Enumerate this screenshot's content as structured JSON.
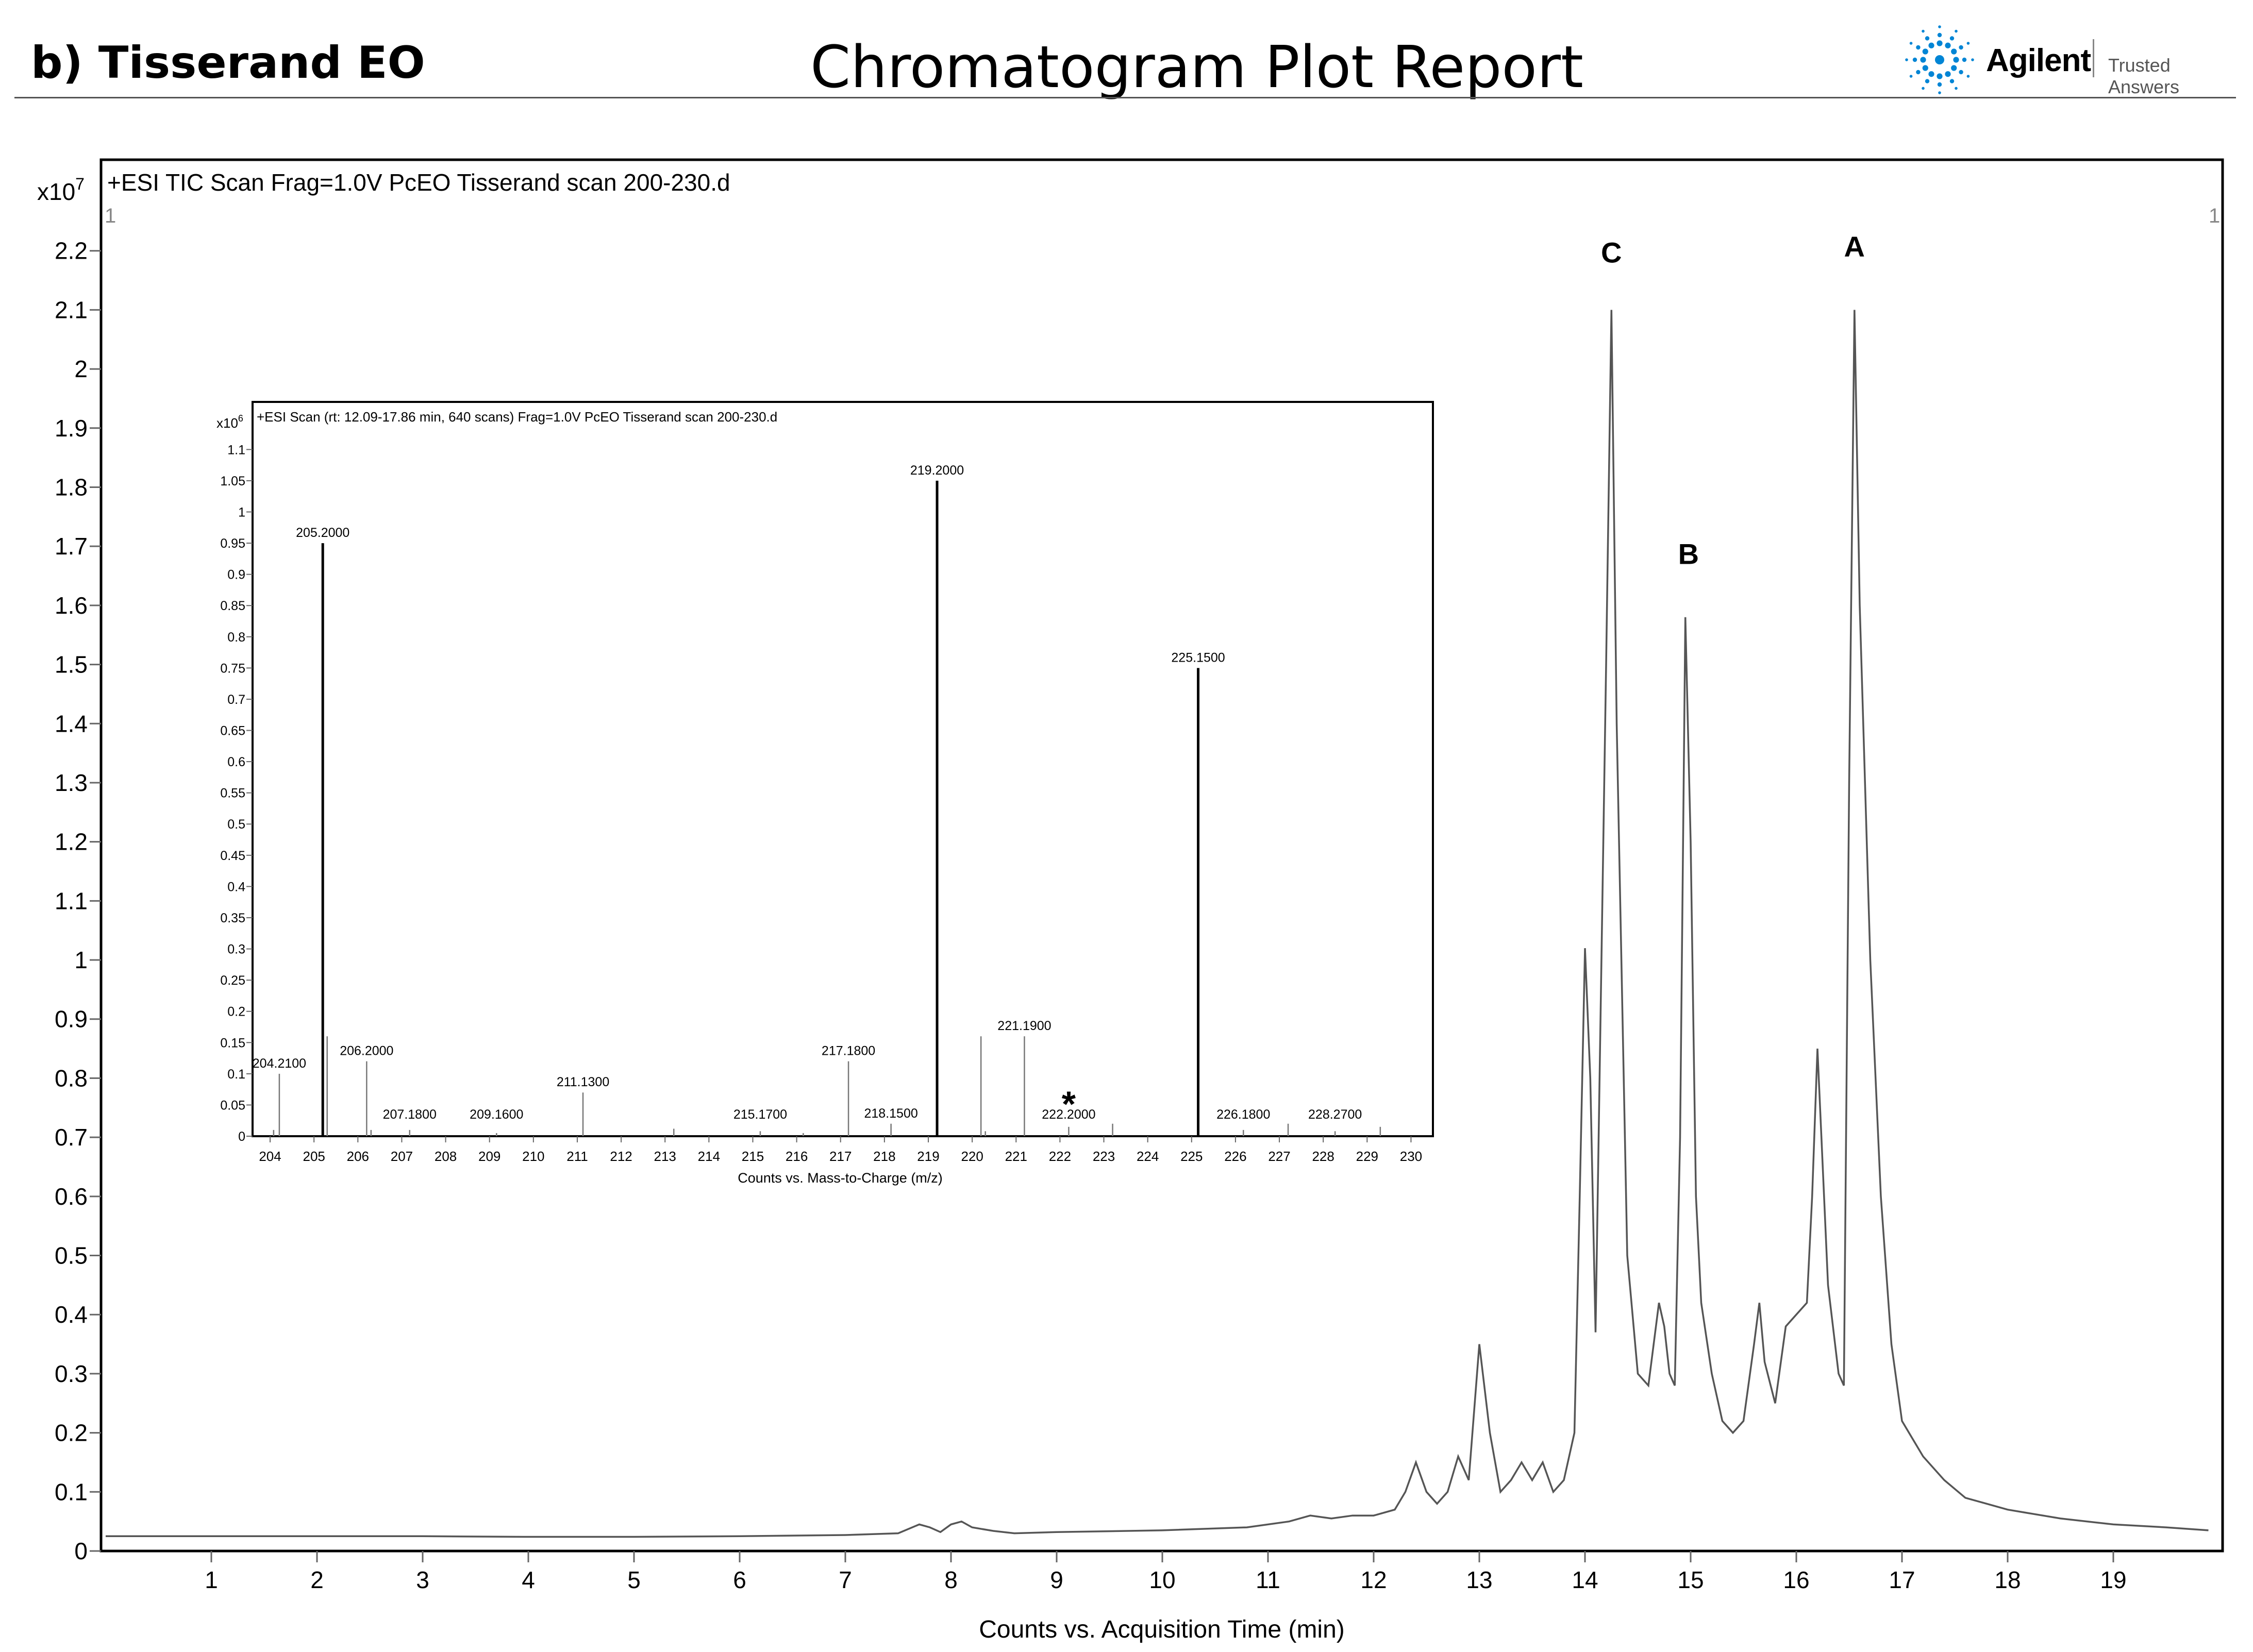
{
  "header": {
    "left_title": "b) Tisserand EO",
    "center_title": "Chromatogram Plot Report",
    "logo_text": "Agilent",
    "logo_tagline": "Trusted Answers",
    "logo_icon": "agilent-spark-icon",
    "logo_color": "#0085d5"
  },
  "chart_data": [
    {
      "type": "line",
      "title": "+ESI TIC Scan Frag=1.0V PcEO Tisserand scan 200-230.d",
      "xlabel": "Counts vs. Acquisition Time (min)",
      "ylabel": "",
      "y_multiplier": "x10",
      "y_exponent": "7",
      "xlim": [
        0,
        20
      ],
      "ylim": [
        0,
        2.3
      ],
      "x_ticks": [
        1,
        2,
        3,
        4,
        5,
        6,
        7,
        8,
        9,
        10,
        11,
        12,
        13,
        14,
        15,
        16,
        17,
        18,
        19
      ],
      "y_ticks": [
        "0",
        "0.1",
        "0.2",
        "0.3",
        "0.4",
        "0.5",
        "0.6",
        "0.7",
        "0.8",
        "0.9",
        "1",
        "1.1",
        "1.2",
        "1.3",
        "1.4",
        "1.5",
        "1.6",
        "1.7",
        "1.8",
        "1.9",
        "2",
        "2.1",
        "2.2"
      ],
      "corner_labels": [
        "1",
        "1"
      ],
      "grid": false,
      "line_color": "#555555",
      "series": [
        {
          "x": [
            0.0,
            1.0,
            2.0,
            3.0,
            4.0,
            5.0,
            6.0,
            7.0,
            7.5,
            7.7,
            7.8,
            7.9,
            8.0,
            8.1,
            8.2,
            8.4,
            8.6,
            9.0,
            10.0,
            10.8,
            11.2,
            11.4,
            11.6,
            11.8,
            12.0,
            12.2,
            12.3,
            12.4,
            12.5,
            12.6,
            12.7,
            12.8,
            12.9,
            13.0,
            13.1,
            13.2,
            13.3,
            13.4,
            13.5,
            13.6,
            13.7,
            13.8,
            13.9,
            13.95,
            14.0,
            14.05,
            14.1,
            14.2,
            14.25,
            14.3,
            14.4,
            14.5,
            14.6,
            14.7,
            14.75,
            14.8,
            14.85,
            14.9,
            14.95,
            15.0,
            15.05,
            15.1,
            15.2,
            15.3,
            15.4,
            15.5,
            15.6,
            15.65,
            15.7,
            15.8,
            15.9,
            16.0,
            16.1,
            16.15,
            16.2,
            16.3,
            16.4,
            16.45,
            16.5,
            16.55,
            16.6,
            16.7,
            16.8,
            16.9,
            17.0,
            17.1,
            17.2,
            17.4,
            17.6,
            17.8,
            18.0,
            18.5,
            19.0,
            19.5,
            19.9
          ],
          "y": [
            0.025,
            0.025,
            0.025,
            0.025,
            0.024,
            0.024,
            0.025,
            0.027,
            0.03,
            0.045,
            0.04,
            0.032,
            0.045,
            0.05,
            0.04,
            0.034,
            0.03,
            0.032,
            0.035,
            0.04,
            0.05,
            0.06,
            0.055,
            0.06,
            0.06,
            0.07,
            0.1,
            0.15,
            0.1,
            0.08,
            0.1,
            0.16,
            0.12,
            0.35,
            0.2,
            0.1,
            0.12,
            0.15,
            0.12,
            0.15,
            0.1,
            0.12,
            0.2,
            0.6,
            1.02,
            0.8,
            0.37,
            1.5,
            2.1,
            1.4,
            0.5,
            0.3,
            0.28,
            0.42,
            0.38,
            0.3,
            0.28,
            0.7,
            1.58,
            1.2,
            0.6,
            0.42,
            0.3,
            0.22,
            0.2,
            0.22,
            0.35,
            0.42,
            0.32,
            0.25,
            0.38,
            0.4,
            0.42,
            0.6,
            0.85,
            0.45,
            0.3,
            0.28,
            1.3,
            2.1,
            1.6,
            1.0,
            0.6,
            0.35,
            0.22,
            0.19,
            0.16,
            0.12,
            0.09,
            0.08,
            0.07,
            0.055,
            0.045,
            0.04,
            0.035
          ]
        }
      ],
      "annotations": [
        {
          "label": "C",
          "x": 14.25,
          "y": 2.18
        },
        {
          "label": "A",
          "x": 16.55,
          "y": 2.19
        },
        {
          "label": "B",
          "x": 14.98,
          "y": 1.67
        }
      ]
    },
    {
      "type": "bar",
      "title": "+ESI Scan (rt: 12.09-17.86 min, 640 scans) Frag=1.0V PcEO Tisserand scan 200-230.d",
      "xlabel": "Counts vs. Mass-to-Charge (m/z)",
      "ylabel": "",
      "y_multiplier": "x10",
      "y_exponent": "6",
      "xlim": [
        203.6,
        230.5
      ],
      "ylim": [
        0,
        1.13
      ],
      "x_ticks": [
        204,
        205,
        206,
        207,
        208,
        209,
        210,
        211,
        212,
        213,
        214,
        215,
        216,
        217,
        218,
        219,
        220,
        221,
        222,
        223,
        224,
        225,
        226,
        227,
        228,
        229,
        230
      ],
      "y_ticks": [
        "0",
        "0.05",
        "0.1",
        "0.15",
        "0.2",
        "0.25",
        "0.3",
        "0.35",
        "0.4",
        "0.45",
        "0.5",
        "0.55",
        "0.6",
        "0.65",
        "0.7",
        "0.75",
        "0.8",
        "0.85",
        "0.9",
        "0.95",
        "1",
        "1.05",
        "1.1"
      ],
      "grid": false,
      "peaks": [
        {
          "mz": 204.08,
          "value": 0.01
        },
        {
          "mz": 204.21,
          "value": 0.1,
          "label": "204.2100"
        },
        {
          "mz": 205.2,
          "value": 0.95,
          "label": "205.2000"
        },
        {
          "mz": 205.3,
          "value": 0.16
        },
        {
          "mz": 206.2,
          "value": 0.12,
          "label": "206.2000"
        },
        {
          "mz": 206.3,
          "value": 0.01
        },
        {
          "mz": 207.18,
          "value": 0.01,
          "label": "207.1800"
        },
        {
          "mz": 209.16,
          "value": 0.005,
          "label": "209.1600"
        },
        {
          "mz": 211.13,
          "value": 0.07,
          "label": "211.1300"
        },
        {
          "mz": 213.2,
          "value": 0.012
        },
        {
          "mz": 215.17,
          "value": 0.008,
          "label": "215.1700"
        },
        {
          "mz": 216.15,
          "value": 0.005
        },
        {
          "mz": 217.18,
          "value": 0.12,
          "label": "217.1800"
        },
        {
          "mz": 218.15,
          "value": 0.02,
          "label": "218.1500"
        },
        {
          "mz": 219.2,
          "value": 1.05,
          "label": "219.2000"
        },
        {
          "mz": 220.2,
          "value": 0.16
        },
        {
          "mz": 220.3,
          "value": 0.008
        },
        {
          "mz": 221.19,
          "value": 0.16,
          "label": "221.1900"
        },
        {
          "mz": 222.2,
          "value": 0.015,
          "label": "222.2000"
        },
        {
          "mz": 223.2,
          "value": 0.02
        },
        {
          "mz": 225.15,
          "value": 0.75,
          "label": "225.1500"
        },
        {
          "mz": 226.18,
          "value": 0.01,
          "label": "226.1800"
        },
        {
          "mz": 227.2,
          "value": 0.02
        },
        {
          "mz": 228.27,
          "value": 0.008,
          "label": "228.2700"
        },
        {
          "mz": 229.3,
          "value": 0.015
        }
      ],
      "annotations": [
        {
          "label": "*",
          "x": 222.2,
          "y": 0.06
        }
      ]
    }
  ]
}
